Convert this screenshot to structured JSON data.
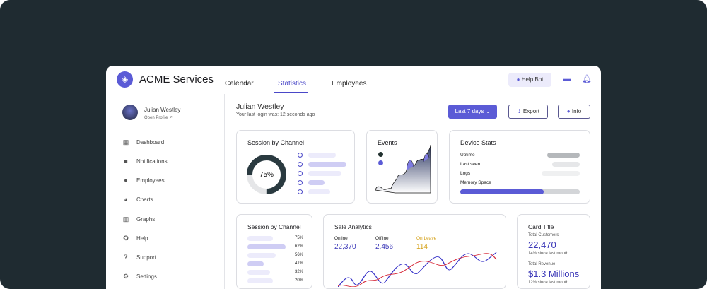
{
  "header": {
    "brand": "ACME Services",
    "tabs": [
      {
        "label": "Calendar"
      },
      {
        "label": "Statistics",
        "active": true
      },
      {
        "label": "Employees"
      }
    ],
    "help_bot": "Help Bot",
    "icons": [
      "chat-icon",
      "bell-icon"
    ]
  },
  "user": {
    "name": "Julian Westley",
    "open_profile": "Open Profile"
  },
  "sidebar": {
    "items": [
      {
        "label": "Dashboard",
        "icon": "dashboard-icon"
      },
      {
        "label": "Notifications",
        "icon": "notifications-icon"
      },
      {
        "label": "Employees",
        "icon": "person-icon"
      },
      {
        "label": "Charts",
        "icon": "pie-chart-icon"
      },
      {
        "label": "Graphs",
        "icon": "bar-graph-icon"
      },
      {
        "label": "Help",
        "icon": "lifebuoy-icon"
      },
      {
        "label": "Support",
        "icon": "question-icon"
      },
      {
        "label": "Settings",
        "icon": "gear-icon"
      }
    ]
  },
  "main": {
    "title": "Julian Westley",
    "subtitle": "Your last login was: 12 seconds ago",
    "range_button": "Last 7 days",
    "export_button": "Export",
    "info_button": "Info"
  },
  "session_card": {
    "title": "Session by Channel",
    "percent": "75%",
    "donut_value": 75
  },
  "events_card": {
    "title": "Events"
  },
  "device_card": {
    "title": "Device Stats",
    "rows": [
      "Uptime",
      "Last seen",
      "Logs",
      "Memory Space"
    ],
    "memory_fill": 0.7
  },
  "session_card2": {
    "title": "Session by Channel",
    "rows": [
      {
        "value": "75%"
      },
      {
        "value": "62%"
      },
      {
        "value": "56%"
      },
      {
        "value": "41%"
      },
      {
        "value": "32%"
      },
      {
        "value": "20%"
      }
    ]
  },
  "sale_card": {
    "title": "Sale Analytics",
    "stats": [
      {
        "label": "Online",
        "value": "22,370"
      },
      {
        "label": "Offline",
        "value": "2,456"
      },
      {
        "label": "On Leave",
        "value": "114"
      }
    ]
  },
  "info_card": {
    "title": "Card Title",
    "customers_label": "Total Customers",
    "customers_value": "22,470",
    "customers_delta": "14% since last month",
    "revenue_label": "Total Revenue",
    "revenue_value": "$1.3 Millions",
    "revenue_delta": "12% since last month"
  },
  "colors": {
    "accent": "#5b5bd6",
    "background": "#1f2b31",
    "onleave": "#d4a017",
    "red": "#d62a3a"
  }
}
